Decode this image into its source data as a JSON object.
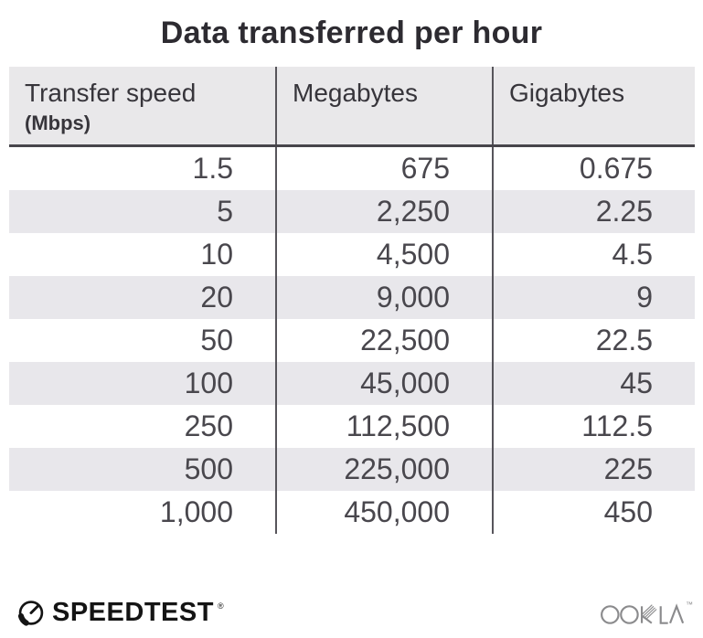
{
  "title": "Data transferred per hour",
  "table": {
    "columns": [
      {
        "label": "Transfer speed",
        "sublabel": "(Mbps)"
      },
      {
        "label": "Megabytes",
        "sublabel": ""
      },
      {
        "label": "Gigabytes",
        "sublabel": ""
      }
    ],
    "rows": [
      [
        "1.5",
        "675",
        "0.675"
      ],
      [
        "5",
        "2,250",
        "2.25"
      ],
      [
        "10",
        "4,500",
        "4.5"
      ],
      [
        "20",
        "9,000",
        "9"
      ],
      [
        "50",
        "22,500",
        "22.5"
      ],
      [
        "100",
        "45,000",
        "45"
      ],
      [
        "250",
        "112,500",
        "112.5"
      ],
      [
        "500",
        "225,000",
        "225"
      ],
      [
        "1,000",
        "450,000",
        "450"
      ]
    ]
  },
  "chart_data": {
    "type": "table",
    "title": "Data transferred per hour",
    "columns": [
      "Transfer speed (Mbps)",
      "Megabytes",
      "Gigabytes"
    ],
    "rows": [
      [
        1.5,
        675,
        0.675
      ],
      [
        5,
        2250,
        2.25
      ],
      [
        10,
        4500,
        4.5
      ],
      [
        20,
        9000,
        9
      ],
      [
        50,
        22500,
        22.5
      ],
      [
        100,
        45000,
        45
      ],
      [
        250,
        112500,
        112.5
      ],
      [
        500,
        225000,
        225
      ],
      [
        1000,
        450000,
        450
      ]
    ]
  },
  "footer": {
    "brand": "SPEEDTEST",
    "brand_mark": "®",
    "partner": "OOKLA",
    "partner_mark": "™"
  },
  "colors": {
    "header_bg": "#e9e8ea",
    "stripe_bg": "#e8e7eb",
    "divider": "#57555b",
    "header_rule": "#47454b",
    "title_text": "#2d2b31",
    "body_text": "#49474d",
    "ookla_gray": "#8b8b8d",
    "brand_black": "#141414"
  }
}
